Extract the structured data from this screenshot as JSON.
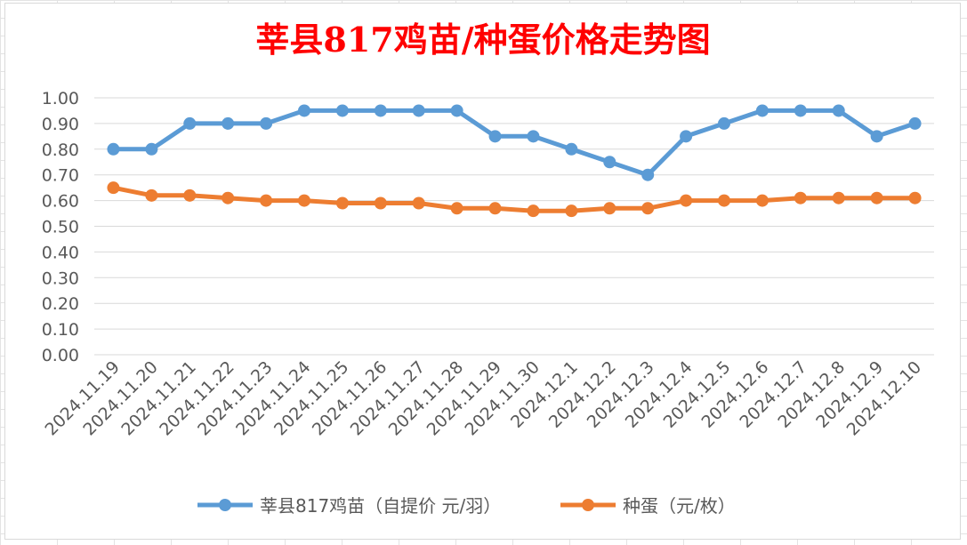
{
  "chart_data": {
    "type": "line",
    "title": "莘县817鸡苗/种蛋价格走势图",
    "title_color": "#ff0000",
    "categories": [
      "2024.11.19",
      "2024.11.20",
      "2024.11.21",
      "2024.11.22",
      "2024.11.23",
      "2024.11.24",
      "2024.11.25",
      "2024.11.26",
      "2024.11.27",
      "2024.11.28",
      "2024.11.29",
      "2024.11.30",
      "2024.12.1",
      "2024.12.2",
      "2024.12.3",
      "2024.12.4",
      "2024.12.5",
      "2024.12.6",
      "2024.12.7",
      "2024.12.8",
      "2024.12.9",
      "2024.12.10"
    ],
    "series": [
      {
        "name": "莘县817鸡苗（自提价 元/羽）",
        "color": "#5b9bd5",
        "values": [
          0.8,
          0.8,
          0.9,
          0.9,
          0.9,
          0.95,
          0.95,
          0.95,
          0.95,
          0.95,
          0.85,
          0.85,
          0.8,
          0.75,
          0.7,
          0.85,
          0.9,
          0.95,
          0.95,
          0.95,
          0.85,
          0.9
        ]
      },
      {
        "name": "种蛋（元/枚）",
        "color": "#ed7d31",
        "values": [
          0.65,
          0.62,
          0.62,
          0.61,
          0.6,
          0.6,
          0.59,
          0.59,
          0.59,
          0.57,
          0.57,
          0.56,
          0.56,
          0.57,
          0.57,
          0.6,
          0.6,
          0.6,
          0.61,
          0.61,
          0.61,
          0.61
        ]
      }
    ],
    "ylim": [
      0,
      1.0
    ],
    "yticks": [
      "0.00",
      "0.10",
      "0.20",
      "0.30",
      "0.40",
      "0.50",
      "0.60",
      "0.70",
      "0.80",
      "0.90",
      "1.00"
    ],
    "grid": true,
    "legend": "bottom"
  }
}
